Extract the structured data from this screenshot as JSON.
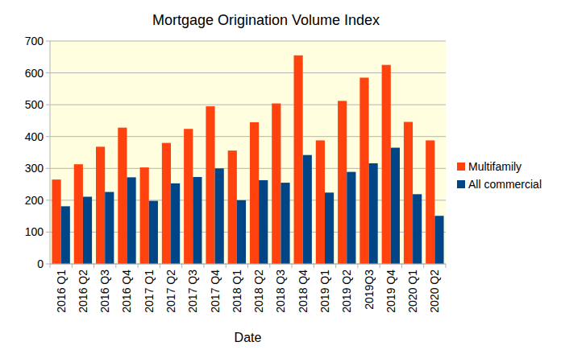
{
  "chart_data": {
    "type": "bar",
    "title": "Mortgage Origination Volume Index",
    "x_label": "Date",
    "categories": [
      "2016 Q1",
      "2016 Q2",
      "2016 Q3",
      "2016 Q4",
      "2017 Q1",
      "2017 Q2",
      "2017 Q3",
      "2017 Q4",
      "2018 Q1",
      "2018 Q2",
      "2018 Q3",
      "2018 Q4",
      "2019 Q1",
      "2019 Q2",
      "2019Q3",
      "2019 Q4",
      "2020 Q1",
      "2020 Q2"
    ],
    "series": [
      {
        "name": "Multifamily",
        "color": "#ff420e",
        "values": [
          265,
          313,
          368,
          428,
          303,
          380,
          424,
          495,
          356,
          445,
          504,
          655,
          388,
          512,
          585,
          625,
          446,
          388
        ]
      },
      {
        "name": "All commercial",
        "color": "#004586",
        "values": [
          181,
          211,
          226,
          272,
          198,
          253,
          273,
          300,
          200,
          263,
          255,
          342,
          224,
          289,
          316,
          365,
          219,
          151
        ]
      }
    ],
    "ylim": [
      0,
      700
    ],
    "yticks": [
      0,
      100,
      200,
      300,
      400,
      500,
      600,
      700
    ],
    "grid": true,
    "legend": "right"
  }
}
